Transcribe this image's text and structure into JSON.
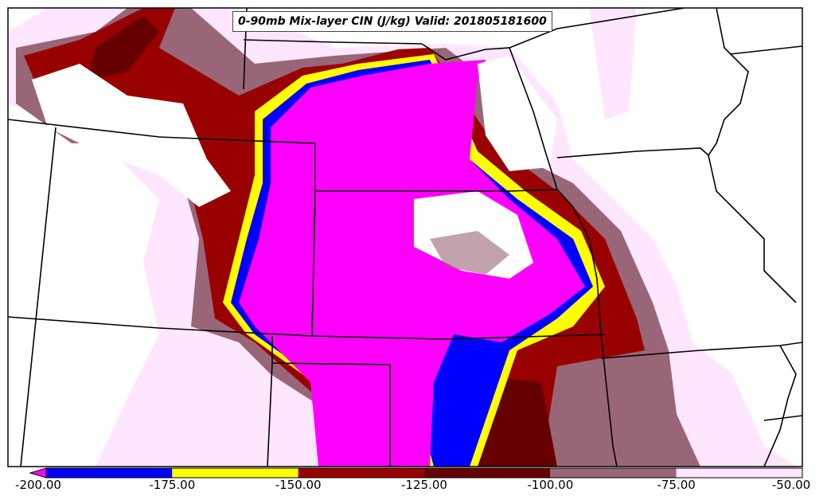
{
  "title": "0-90mb Mix-layer CIN (J/kg) Valid: 201805181600",
  "colorbar": {
    "tick_labels": [
      "-200.00",
      "-175.00",
      "-150.00",
      "-125.00",
      "-100.00",
      "-75.00",
      "-50.00"
    ],
    "colors": [
      "#0000ff",
      "#ffff00",
      "#990000",
      "#660000",
      "#996677",
      "#ffe6ff"
    ],
    "under_color": "#ff00ff",
    "extend": "min"
  },
  "fill_colors": {
    "lt_-200": "#ff00ff",
    "-200_to_-175": "#0000ff",
    "-175_to_-150": "#ffff00",
    "-150_to_-125": "#990000",
    "-125_to_-100": "#660000",
    "-100_to_-75": "#996677",
    "-75_to_-50": "#ffe6ff"
  }
}
